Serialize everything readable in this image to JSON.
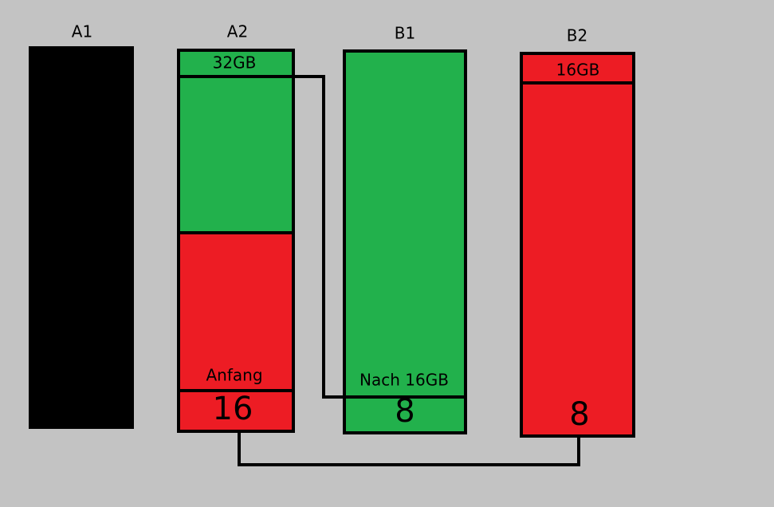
{
  "columns": [
    {
      "label": "A1"
    },
    {
      "label": "A2",
      "top_label": "32GB",
      "note": "Anfang",
      "value": 16
    },
    {
      "label": "B1",
      "note": "Nach 16GB",
      "value": 8
    },
    {
      "label": "B2",
      "top_label": "16GB",
      "value": 8
    }
  ]
}
